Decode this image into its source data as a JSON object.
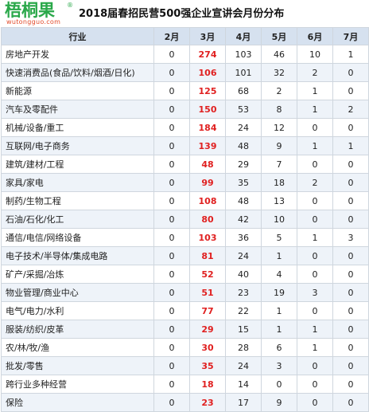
{
  "header": {
    "logo_text": "梧桐果",
    "logo_reg": "®",
    "logo_url": "wutongguo.com",
    "title": "2018届春招民营500强企业宣讲会月份分布"
  },
  "table": {
    "columns": [
      "行业",
      "2月",
      "3月",
      "4月",
      "5月",
      "6月",
      "7月"
    ],
    "rows": [
      [
        "房地产开发",
        "0",
        "274",
        "103",
        "46",
        "10",
        "1"
      ],
      [
        "快速消费品(食品/饮料/烟酒/日化)",
        "0",
        "106",
        "101",
        "32",
        "2",
        "0"
      ],
      [
        "新能源",
        "0",
        "125",
        "68",
        "2",
        "1",
        "0"
      ],
      [
        "汽车及零配件",
        "0",
        "150",
        "53",
        "8",
        "1",
        "2"
      ],
      [
        "机械/设备/重工",
        "0",
        "184",
        "24",
        "12",
        "0",
        "0"
      ],
      [
        "互联网/电子商务",
        "0",
        "139",
        "48",
        "9",
        "1",
        "1"
      ],
      [
        "建筑/建材/工程",
        "0",
        "48",
        "29",
        "7",
        "0",
        "0"
      ],
      [
        "家具/家电",
        "0",
        "99",
        "35",
        "18",
        "2",
        "0"
      ],
      [
        "制药/生物工程",
        "0",
        "108",
        "48",
        "13",
        "0",
        "0"
      ],
      [
        "石油/石化/化工",
        "0",
        "80",
        "42",
        "10",
        "0",
        "0"
      ],
      [
        "通信/电信/网络设备",
        "0",
        "103",
        "36",
        "5",
        "1",
        "3"
      ],
      [
        "电子技术/半导体/集成电路",
        "0",
        "81",
        "24",
        "1",
        "0",
        "0"
      ],
      [
        "矿产/采掘/冶炼",
        "0",
        "52",
        "40",
        "4",
        "0",
        "0"
      ],
      [
        "物业管理/商业中心",
        "0",
        "51",
        "23",
        "19",
        "3",
        "0"
      ],
      [
        "电气/电力/水利",
        "0",
        "77",
        "22",
        "1",
        "0",
        "0"
      ],
      [
        "服装/纺织/皮革",
        "0",
        "29",
        "15",
        "1",
        "1",
        "0"
      ],
      [
        "农/林/牧/渔",
        "0",
        "30",
        "28",
        "6",
        "1",
        "0"
      ],
      [
        "批发/零售",
        "0",
        "35",
        "24",
        "3",
        "0",
        "0"
      ],
      [
        "跨行业多种经营",
        "0",
        "18",
        "14",
        "0",
        "0",
        "0"
      ],
      [
        "保险",
        "0",
        "23",
        "17",
        "9",
        "0",
        "0"
      ]
    ]
  },
  "colors": {
    "header_bg": "#d6e1ef",
    "stripe_bg": "#eef3f9",
    "highlight": "#e02020",
    "logo": "#2aa84a"
  }
}
